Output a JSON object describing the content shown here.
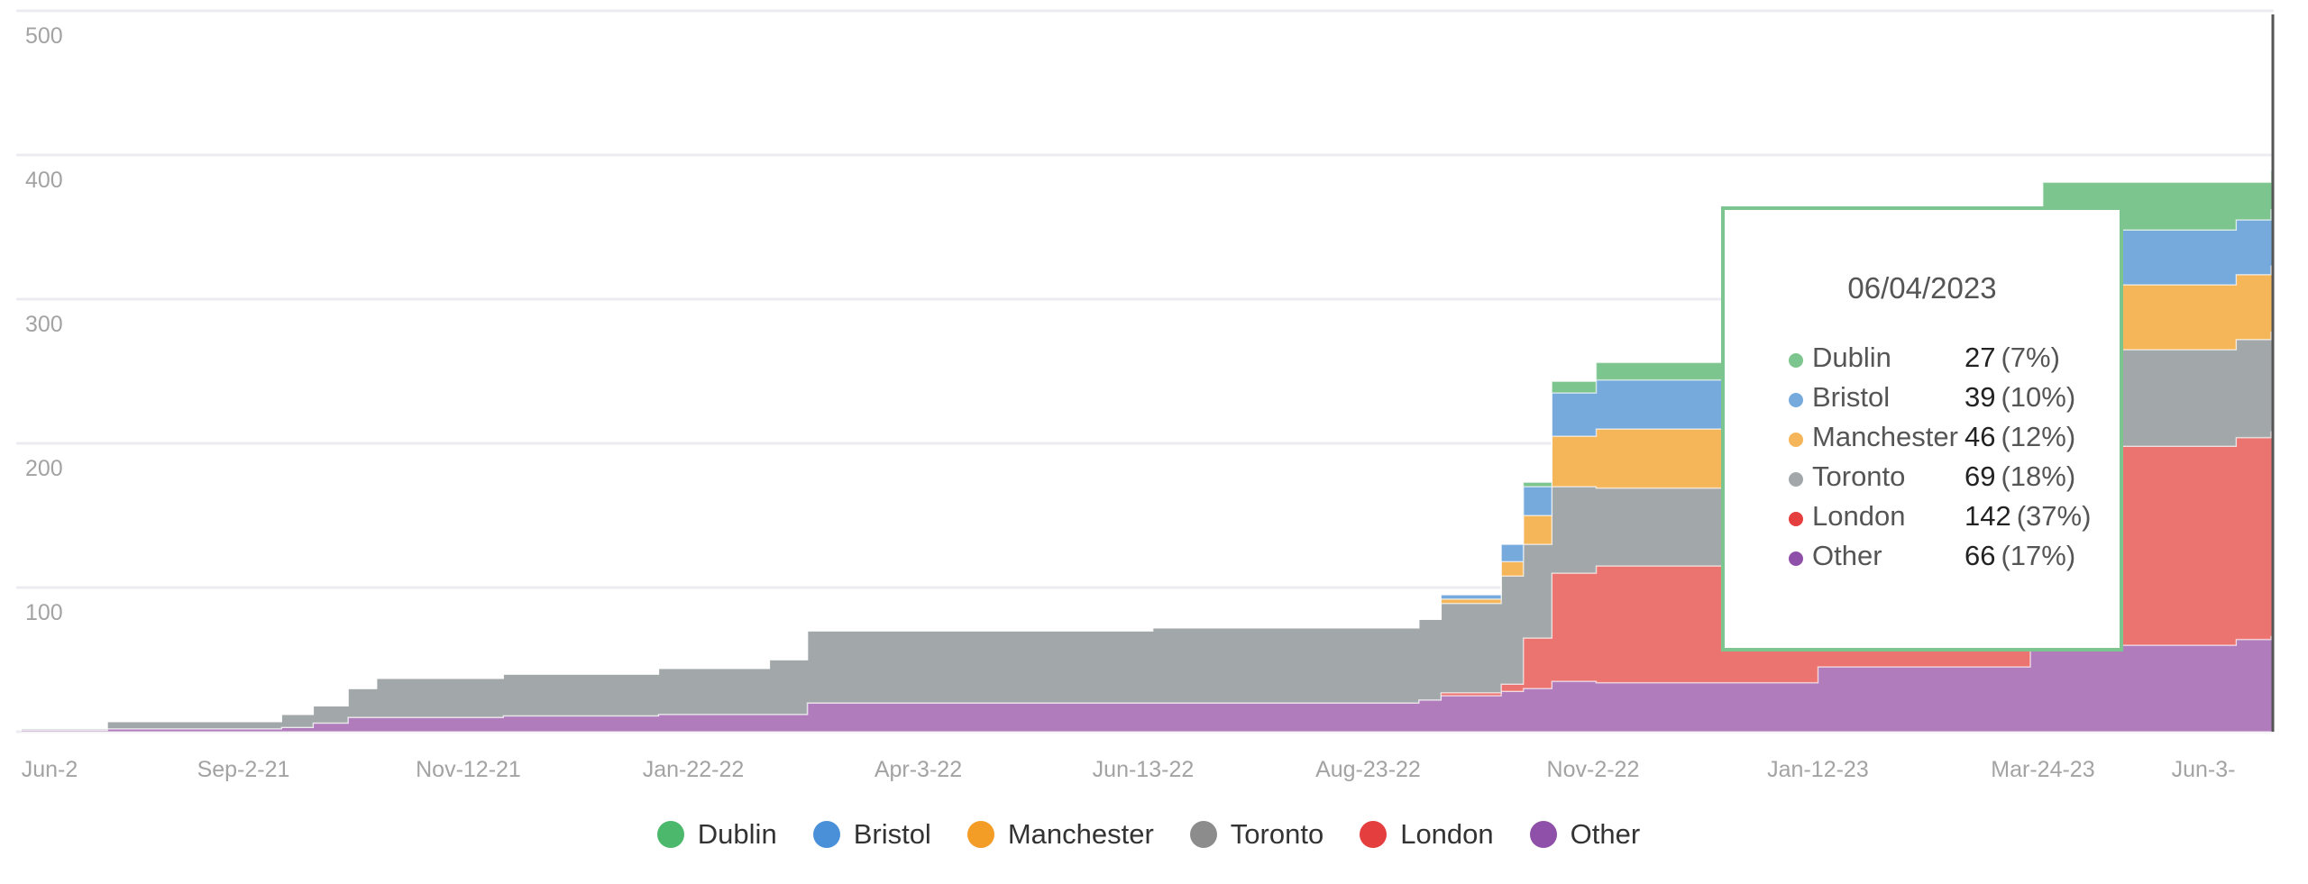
{
  "chart_data": {
    "type": "area",
    "stacked": true,
    "title": "",
    "xlabel": "",
    "ylabel": "",
    "ylim": [
      0,
      500
    ],
    "grid": true,
    "yticks": [
      0,
      100,
      200,
      300,
      400,
      500
    ],
    "ytick_labels": [
      "",
      "100",
      "200",
      "300",
      "400",
      "500"
    ],
    "xtick_labels": [
      {
        "date": "2021-06-23",
        "label": "Jun-2"
      },
      {
        "date": "2021-09-02",
        "label": "Sep-2-21"
      },
      {
        "date": "2021-11-12",
        "label": "Nov-12-21"
      },
      {
        "date": "2022-01-22",
        "label": "Jan-22-22"
      },
      {
        "date": "2022-04-03",
        "label": "Apr-3-22"
      },
      {
        "date": "2022-06-13",
        "label": "Jun-13-22"
      },
      {
        "date": "2022-08-23",
        "label": "Aug-23-22"
      },
      {
        "date": "2022-11-02",
        "label": "Nov-2-22"
      },
      {
        "date": "2023-01-12",
        "label": "Jan-12-23"
      },
      {
        "date": "2023-03-24",
        "label": "Mar-24-23"
      },
      {
        "date": "2023-06-03",
        "label": "Jun-3-"
      }
    ],
    "legend_position": "bottom",
    "x": [
      "2021-06-24",
      "2021-07-21",
      "2021-09-14",
      "2021-09-24",
      "2021-10-05",
      "2021-10-14",
      "2021-11-23",
      "2022-01-11",
      "2022-02-15",
      "2022-02-27",
      "2022-06-16",
      "2022-09-08",
      "2022-09-15",
      "2022-10-04",
      "2022-10-11",
      "2022-10-20",
      "2022-11-03",
      "2023-01-12",
      "2023-03-20",
      "2023-03-24",
      "2023-05-24",
      "2023-06-04"
    ],
    "series": [
      {
        "name": "Other",
        "color": "#b07cbc",
        "legend_color": "#8e50a8",
        "values": [
          1,
          2,
          3,
          6,
          10,
          10,
          11,
          12,
          12,
          20,
          20,
          22,
          25,
          28,
          30,
          35,
          34,
          45,
          58,
          60,
          64,
          66
        ]
      },
      {
        "name": "London",
        "color": "#ec7470",
        "legend_color": "#e53e3e",
        "values": [
          0,
          0,
          0,
          0,
          0,
          0,
          0,
          0,
          0,
          0,
          0,
          0,
          2,
          5,
          35,
          75,
          81,
          81,
          81,
          138,
          140,
          142
        ]
      },
      {
        "name": "Toronto",
        "color": "#a2a8aa",
        "legend_color": "#8c8c8c",
        "values": [
          1,
          5,
          9,
          12,
          20,
          27,
          29,
          32,
          38,
          50,
          52,
          56,
          62,
          75,
          65,
          60,
          54,
          54,
          54,
          67,
          68,
          69
        ]
      },
      {
        "name": "Manchester",
        "color": "#f5b65a",
        "legend_color": "#f39c26",
        "values": [
          0,
          0,
          0,
          0,
          0,
          0,
          0,
          0,
          0,
          0,
          0,
          0,
          3,
          10,
          20,
          35,
          41,
          41,
          41,
          45,
          45,
          46
        ]
      },
      {
        "name": "Bristol",
        "color": "#76aadd",
        "legend_color": "#4a90d9",
        "values": [
          0,
          0,
          0,
          0,
          0,
          0,
          0,
          0,
          0,
          0,
          0,
          0,
          3,
          12,
          20,
          30,
          34,
          34,
          34,
          38,
          38,
          39
        ]
      },
      {
        "name": "Dublin",
        "color": "#7dc58f",
        "legend_color": "#4cb86b",
        "values": [
          0,
          0,
          0,
          0,
          0,
          0,
          0,
          0,
          0,
          0,
          0,
          0,
          0,
          0,
          3,
          8,
          12,
          12,
          12,
          33,
          26,
          27
        ]
      }
    ]
  },
  "tooltip": {
    "date": "06/04/2023",
    "rows": [
      {
        "name": "Dublin",
        "value": "27",
        "pct": "(7%)",
        "color": "#7dc58f"
      },
      {
        "name": "Bristol",
        "value": "39",
        "pct": "(10%)",
        "color": "#76aadd"
      },
      {
        "name": "Manchester",
        "value": "46",
        "pct": "(12%)",
        "color": "#f5b65a"
      },
      {
        "name": "Toronto",
        "value": "69",
        "pct": "(18%)",
        "color": "#a2a8aa"
      },
      {
        "name": "London",
        "value": "142",
        "pct": "(37%)",
        "color": "#e53e3e"
      },
      {
        "name": "Other",
        "value": "66",
        "pct": "(17%)",
        "color": "#8e50a8"
      }
    ]
  },
  "legend": [
    {
      "name": "Dublin",
      "color": "#4cb86b"
    },
    {
      "name": "Bristol",
      "color": "#4a90d9"
    },
    {
      "name": "Manchester",
      "color": "#f39c26"
    },
    {
      "name": "Toronto",
      "color": "#8c8c8c"
    },
    {
      "name": "London",
      "color": "#e53e3e"
    },
    {
      "name": "Other",
      "color": "#8e50a8"
    }
  ]
}
